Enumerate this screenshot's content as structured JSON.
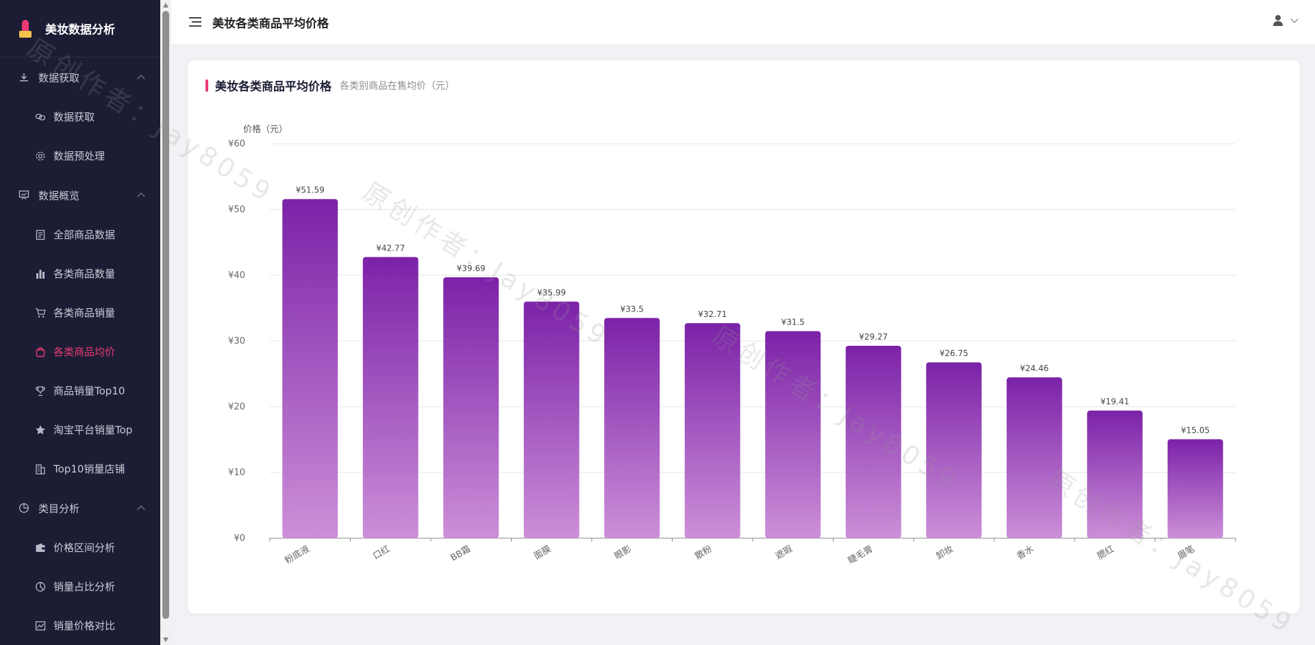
{
  "app": {
    "name": "美妆数据分析"
  },
  "sidebar": {
    "groups": [
      {
        "label": "数据获取",
        "icon": "download-icon",
        "items": [
          {
            "label": "数据获取",
            "icon": "link-icon"
          },
          {
            "label": "数据预处理",
            "icon": "gear-icon"
          }
        ]
      },
      {
        "label": "数据概览",
        "icon": "presentation-icon",
        "items": [
          {
            "label": "全部商品数据",
            "icon": "document-icon"
          },
          {
            "label": "各类商品数量",
            "icon": "bar-chart-icon"
          },
          {
            "label": "各类商品销量",
            "icon": "cart-icon"
          },
          {
            "label": "各类商品均价",
            "icon": "shopping-bag-icon",
            "active": true
          },
          {
            "label": "商品销量Top10",
            "icon": "trophy-icon"
          },
          {
            "label": "淘宝平台销量Top",
            "icon": "star-icon"
          },
          {
            "label": "Top10销量店铺",
            "icon": "building-icon"
          }
        ]
      },
      {
        "label": "类目分析",
        "icon": "pie-icon",
        "items": [
          {
            "label": "价格区间分析",
            "icon": "wallet-icon"
          },
          {
            "label": "销量占比分析",
            "icon": "pie-chart-icon"
          },
          {
            "label": "销量价格对比",
            "icon": "line-chart-icon"
          }
        ]
      }
    ]
  },
  "header": {
    "title": "美妆各类商品平均价格"
  },
  "card": {
    "title": "美妆各类商品平均价格",
    "subtitle": "各类别商品在售均价（元）"
  },
  "watermark": "原创作者：Jay8059",
  "colors": {
    "sidebar_bg": "#1c1d35",
    "accent": "#ec3b74",
    "bar_top": "#7b22a8",
    "bar_bottom": "#cc8fd8"
  },
  "chart_data": {
    "type": "bar",
    "ylabel": "价格（元）",
    "xlabel": "",
    "ylim": [
      0,
      60
    ],
    "yticks": [
      "¥0",
      "¥10",
      "¥20",
      "¥30",
      "¥40",
      "¥50",
      "¥60"
    ],
    "categories": [
      "粉底液",
      "口红",
      "BB霜",
      "面膜",
      "眼影",
      "散粉",
      "遮瑕",
      "睫毛膏",
      "卸妆",
      "香水",
      "腮红",
      "眉笔"
    ],
    "values": [
      51.59,
      42.77,
      39.69,
      35.99,
      33.5,
      32.71,
      31.5,
      29.27,
      26.75,
      24.46,
      19.41,
      15.05
    ],
    "value_labels": [
      "¥51.59",
      "¥42.77",
      "¥39.69",
      "¥35.99",
      "¥33.5",
      "¥32.71",
      "¥31.5",
      "¥29.27",
      "¥26.75",
      "¥24.46",
      "¥19.41",
      "¥15.05"
    ],
    "grid": true,
    "legend": "none"
  }
}
